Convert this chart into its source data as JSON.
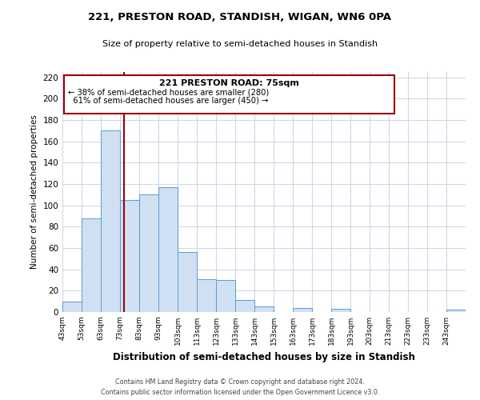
{
  "title1": "221, PRESTON ROAD, STANDISH, WIGAN, WN6 0PA",
  "title2": "Size of property relative to semi-detached houses in Standish",
  "xlabel": "Distribution of semi-detached houses by size in Standish",
  "ylabel": "Number of semi-detached properties",
  "bins": [
    43,
    53,
    63,
    73,
    83,
    93,
    103,
    113,
    123,
    133,
    143,
    153,
    163,
    173,
    183,
    193,
    203,
    213,
    223,
    233,
    243,
    253
  ],
  "counts": [
    10,
    88,
    170,
    105,
    110,
    117,
    56,
    31,
    30,
    11,
    5,
    0,
    4,
    0,
    3,
    0,
    0,
    0,
    0,
    0,
    2
  ],
  "property_size": 75,
  "property_label": "221 PRESTON ROAD: 75sqm",
  "pct_smaller": 38,
  "n_smaller": 280,
  "pct_larger": 61,
  "n_larger": 450,
  "bar_facecolor": "#cfe0f2",
  "bar_edgecolor": "#5b9bd5",
  "vline_color": "#9c0006",
  "annotation_box_edgecolor": "#9c0006",
  "grid_color": "#d0d8e8",
  "background_color": "#ffffff",
  "footer1": "Contains HM Land Registry data © Crown copyright and database right 2024.",
  "footer2": "Contains public sector information licensed under the Open Government Licence v3.0.",
  "ylim": [
    0,
    225
  ],
  "yticks": [
    0,
    20,
    40,
    60,
    80,
    100,
    120,
    140,
    160,
    180,
    200,
    220
  ]
}
